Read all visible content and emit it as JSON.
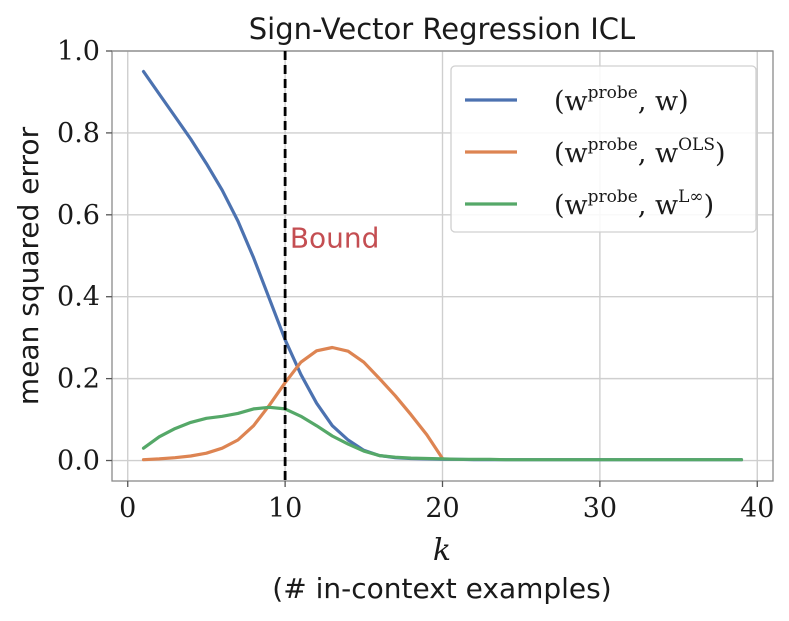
{
  "chart_data": {
    "type": "line",
    "title": "Sign-Vector Regression ICL",
    "xlabel_var": "k",
    "xlabel": "(# in-context examples)",
    "ylabel": "mean squared error",
    "xlim": [
      -1,
      41
    ],
    "ylim": [
      -0.05,
      1.0
    ],
    "xticks": [
      0,
      10,
      20,
      30,
      40
    ],
    "xtick_labels": [
      "0",
      "10",
      "20",
      "30",
      "40"
    ],
    "yticks": [
      0.0,
      0.2,
      0.4,
      0.6,
      0.8,
      1.0
    ],
    "ytick_labels": [
      "0.0",
      "0.2",
      "0.4",
      "0.6",
      "0.8",
      "1.0"
    ],
    "grid": true,
    "legend_position": "top-right",
    "vline": {
      "x": 10,
      "style": "dashed",
      "color": "#000000"
    },
    "annotation": {
      "text": "Bound",
      "x": 10.3,
      "y": 0.52,
      "color": "#c44e52"
    },
    "series": [
      {
        "name": "(w^probe, w)",
        "label_parts": [
          "(w",
          "probe",
          ", w)"
        ],
        "color": "#4c72b0",
        "x": [
          1,
          2,
          3,
          4,
          5,
          6,
          7,
          8,
          9,
          10,
          11,
          12,
          13,
          14,
          15,
          16,
          17,
          18,
          19,
          20,
          21,
          22,
          23,
          24,
          25,
          26,
          27,
          28,
          29,
          30,
          31,
          32,
          33,
          34,
          35,
          36,
          37,
          38,
          39
        ],
        "values": [
          0.95,
          0.895,
          0.84,
          0.785,
          0.725,
          0.66,
          0.585,
          0.495,
          0.395,
          0.295,
          0.21,
          0.14,
          0.085,
          0.05,
          0.025,
          0.012,
          0.007,
          0.005,
          0.004,
          0.003,
          0.003,
          0.002,
          0.002,
          0.002,
          0.002,
          0.002,
          0.002,
          0.002,
          0.002,
          0.002,
          0.002,
          0.002,
          0.002,
          0.002,
          0.002,
          0.002,
          0.002,
          0.002,
          0.002
        ]
      },
      {
        "name": "(w^probe, w^OLS)",
        "label_parts": [
          "(w",
          "probe",
          ", w",
          "OLS",
          ")"
        ],
        "color": "#dd8452",
        "x": [
          1,
          2,
          3,
          4,
          5,
          6,
          7,
          8,
          9,
          10,
          11,
          12,
          13,
          14,
          15,
          16,
          17,
          18,
          19,
          20
        ],
        "values": [
          0.002,
          0.004,
          0.007,
          0.011,
          0.018,
          0.03,
          0.05,
          0.085,
          0.135,
          0.19,
          0.24,
          0.268,
          0.276,
          0.267,
          0.24,
          0.2,
          0.158,
          0.112,
          0.063,
          0.005
        ]
      },
      {
        "name": "(w^probe, w^L∞)",
        "label_parts": [
          "(w",
          "probe",
          ", w",
          "L∞",
          ")"
        ],
        "color": "#55a868",
        "x": [
          1,
          2,
          3,
          4,
          5,
          6,
          7,
          8,
          9,
          10,
          11,
          12,
          13,
          14,
          15,
          16,
          17,
          18,
          19,
          20,
          21,
          22,
          23,
          24,
          25,
          26,
          27,
          28,
          29,
          30,
          31,
          32,
          33,
          34,
          35,
          36,
          37,
          38,
          39
        ],
        "values": [
          0.03,
          0.058,
          0.078,
          0.093,
          0.103,
          0.108,
          0.115,
          0.126,
          0.13,
          0.126,
          0.108,
          0.085,
          0.06,
          0.04,
          0.023,
          0.012,
          0.008,
          0.006,
          0.005,
          0.004,
          0.003,
          0.003,
          0.003,
          0.002,
          0.002,
          0.002,
          0.002,
          0.002,
          0.002,
          0.002,
          0.002,
          0.002,
          0.002,
          0.002,
          0.002,
          0.002,
          0.002,
          0.002,
          0.002
        ]
      }
    ]
  }
}
